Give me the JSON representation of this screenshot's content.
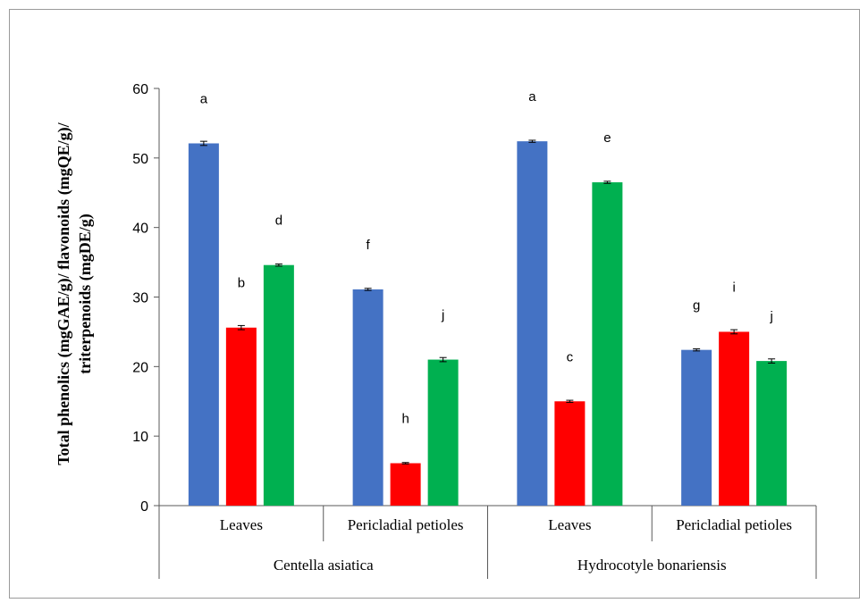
{
  "chart_data": {
    "type": "bar",
    "ylabel_lines": [
      "Total phenolics (mgGAE/g)/ flavonoids (mgQE/g)/",
      "triterpenoids (mgDE/g)"
    ],
    "ylim": [
      0,
      60
    ],
    "yticks": [
      0,
      10,
      20,
      30,
      40,
      50,
      60
    ],
    "grid": false,
    "groups": [
      {
        "species": "Centella asiatica",
        "parts": [
          {
            "label": "Leaves",
            "values": [
              52.1,
              25.6,
              34.6
            ],
            "errors": [
              0.3,
              0.3,
              0.15
            ],
            "letters": [
              "a",
              "b",
              "d"
            ]
          },
          {
            "label": "Pericladial petioles",
            "values": [
              31.1,
              6.1,
              21.0
            ],
            "errors": [
              0.15,
              0.1,
              0.3
            ],
            "letters": [
              "f",
              "h",
              "j"
            ]
          }
        ]
      },
      {
        "species": "Hydrocotyle bonariensis",
        "parts": [
          {
            "label": "Leaves",
            "values": [
              52.4,
              15.0,
              46.5
            ],
            "errors": [
              0.15,
              0.15,
              0.15
            ],
            "letters": [
              "a",
              "c",
              "e"
            ]
          },
          {
            "label": "Pericladial petioles",
            "values": [
              22.4,
              25.0,
              20.8
            ],
            "errors": [
              0.15,
              0.3,
              0.3
            ],
            "letters": [
              "g",
              "i",
              "j"
            ]
          }
        ]
      }
    ],
    "series_colors": [
      "#4472c4",
      "#ff0000",
      "#00b050"
    ]
  }
}
